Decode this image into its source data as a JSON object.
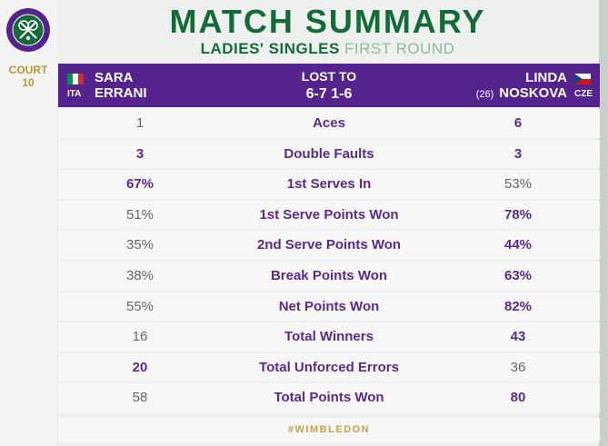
{
  "branding": {
    "logo": "wimbledon-logo",
    "court_label": "COURT",
    "court_number": "10",
    "hashtag": "#WIMBLEDON"
  },
  "header": {
    "title": "MATCH SUMMARY",
    "subtitle_main": "LADIES' SINGLES",
    "subtitle_round": "FIRST ROUND"
  },
  "match": {
    "player1": {
      "first": "SARA",
      "last": "ERRANI",
      "country": "ITA",
      "flag_icon": "italy-flag"
    },
    "player2": {
      "first": "LINDA",
      "last": "NOSKOVA",
      "seed": "(26)",
      "country": "CZE",
      "flag_icon": "czech-flag"
    },
    "result_label": "LOST TO",
    "score": "6-7 1-6"
  },
  "stats": [
    {
      "label": "Aces",
      "p1": "1",
      "p2": "6",
      "p1_bold": false,
      "p2_bold": true
    },
    {
      "label": "Double Faults",
      "p1": "3",
      "p2": "3",
      "p1_bold": true,
      "p2_bold": true
    },
    {
      "label": "1st Serves In",
      "p1": "67%",
      "p2": "53%",
      "p1_bold": true,
      "p2_bold": false
    },
    {
      "label": "1st Serve Points Won",
      "p1": "51%",
      "p2": "78%",
      "p1_bold": false,
      "p2_bold": true
    },
    {
      "label": "2nd Serve Points Won",
      "p1": "35%",
      "p2": "44%",
      "p1_bold": false,
      "p2_bold": true
    },
    {
      "label": "Break Points Won",
      "p1": "38%",
      "p2": "63%",
      "p1_bold": false,
      "p2_bold": true
    },
    {
      "label": "Net Points Won",
      "p1": "55%",
      "p2": "82%",
      "p1_bold": false,
      "p2_bold": true
    },
    {
      "label": "Total Winners",
      "p1": "16",
      "p2": "43",
      "p1_bold": false,
      "p2_bold": true
    },
    {
      "label": "Total Unforced Errors",
      "p1": "20",
      "p2": "36",
      "p1_bold": true,
      "p2_bold": false
    },
    {
      "label": "Total Points Won",
      "p1": "58",
      "p2": "80",
      "p1_bold": false,
      "p2_bold": true
    }
  ],
  "colors": {
    "purple": "#54238d",
    "green": "#146b3a",
    "gold": "#c2a44f"
  }
}
